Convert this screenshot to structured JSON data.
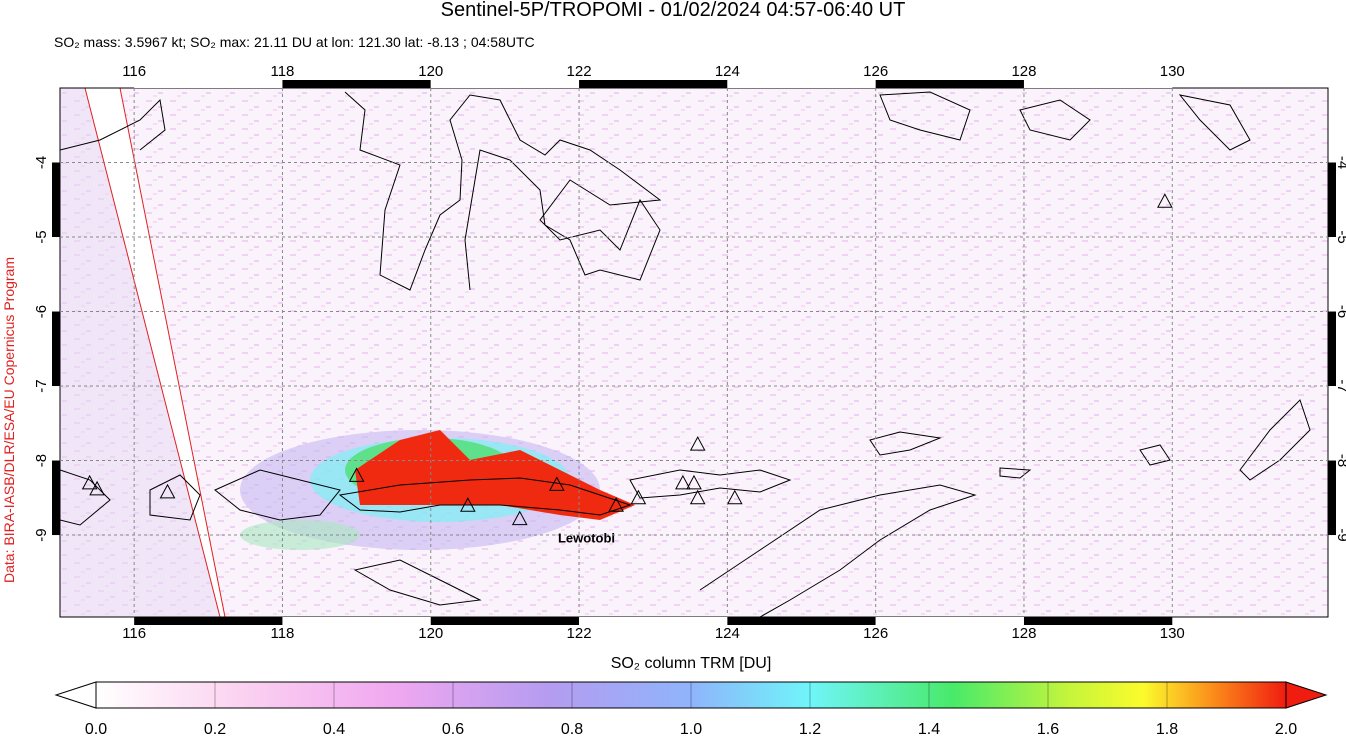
{
  "chart_data": {
    "type": "map",
    "title": "Sentinel-5P/TROPOMI - 01/02/2024 04:57-06:40 UT",
    "subtitle": "SO₂ mass: 3.5967 kt; SO₂ max: 21.11 DU at lon: 121.30 lat: -8.13 ; 04:58UTC",
    "side_label": "Data: BIRA-IASB/DLR/ESA/EU Copernicus Program",
    "xlim": [
      115,
      132.1
    ],
    "ylim": [
      -10.1,
      -3
    ],
    "xticks": [
      116,
      118,
      120,
      122,
      124,
      126,
      128,
      130
    ],
    "yticks": [
      -9,
      -8,
      -7,
      -6,
      -5,
      -4
    ],
    "volcanoes": {
      "lon": [
        115.4,
        115.5,
        116.45,
        119.0,
        120.5,
        121.2,
        121.7,
        122.5,
        122.8,
        123.4,
        123.55,
        123.6,
        123.6,
        124.1,
        129.9
      ],
      "lat": [
        -8.3,
        -8.38,
        -8.42,
        -8.2,
        -8.6,
        -8.78,
        -8.32,
        -8.6,
        -8.5,
        -8.3,
        -8.3,
        -7.78,
        -8.5,
        -8.5,
        -4.52
      ]
    },
    "annotation": {
      "text": "Lewotobi",
      "lon": 122.1,
      "lat": -9.1
    },
    "colorbar": {
      "label": "SO₂ column TRM [DU]",
      "lim": [
        0,
        2
      ],
      "ticks": [
        {
          "value": 0,
          "label": "0.0"
        },
        {
          "value": 0.2,
          "label": "0.2"
        },
        {
          "value": 0.4,
          "label": "0.4"
        },
        {
          "value": 0.6,
          "label": "0.6"
        },
        {
          "value": 0.8,
          "label": "0.8"
        },
        {
          "value": 1,
          "label": "1.0"
        },
        {
          "value": 1.2,
          "label": "1.2"
        },
        {
          "value": 1.4,
          "label": "1.4"
        },
        {
          "value": 1.6,
          "label": "1.6"
        },
        {
          "value": 1.8,
          "label": "1.8"
        },
        {
          "value": 2,
          "label": "2.0"
        }
      ]
    }
  }
}
